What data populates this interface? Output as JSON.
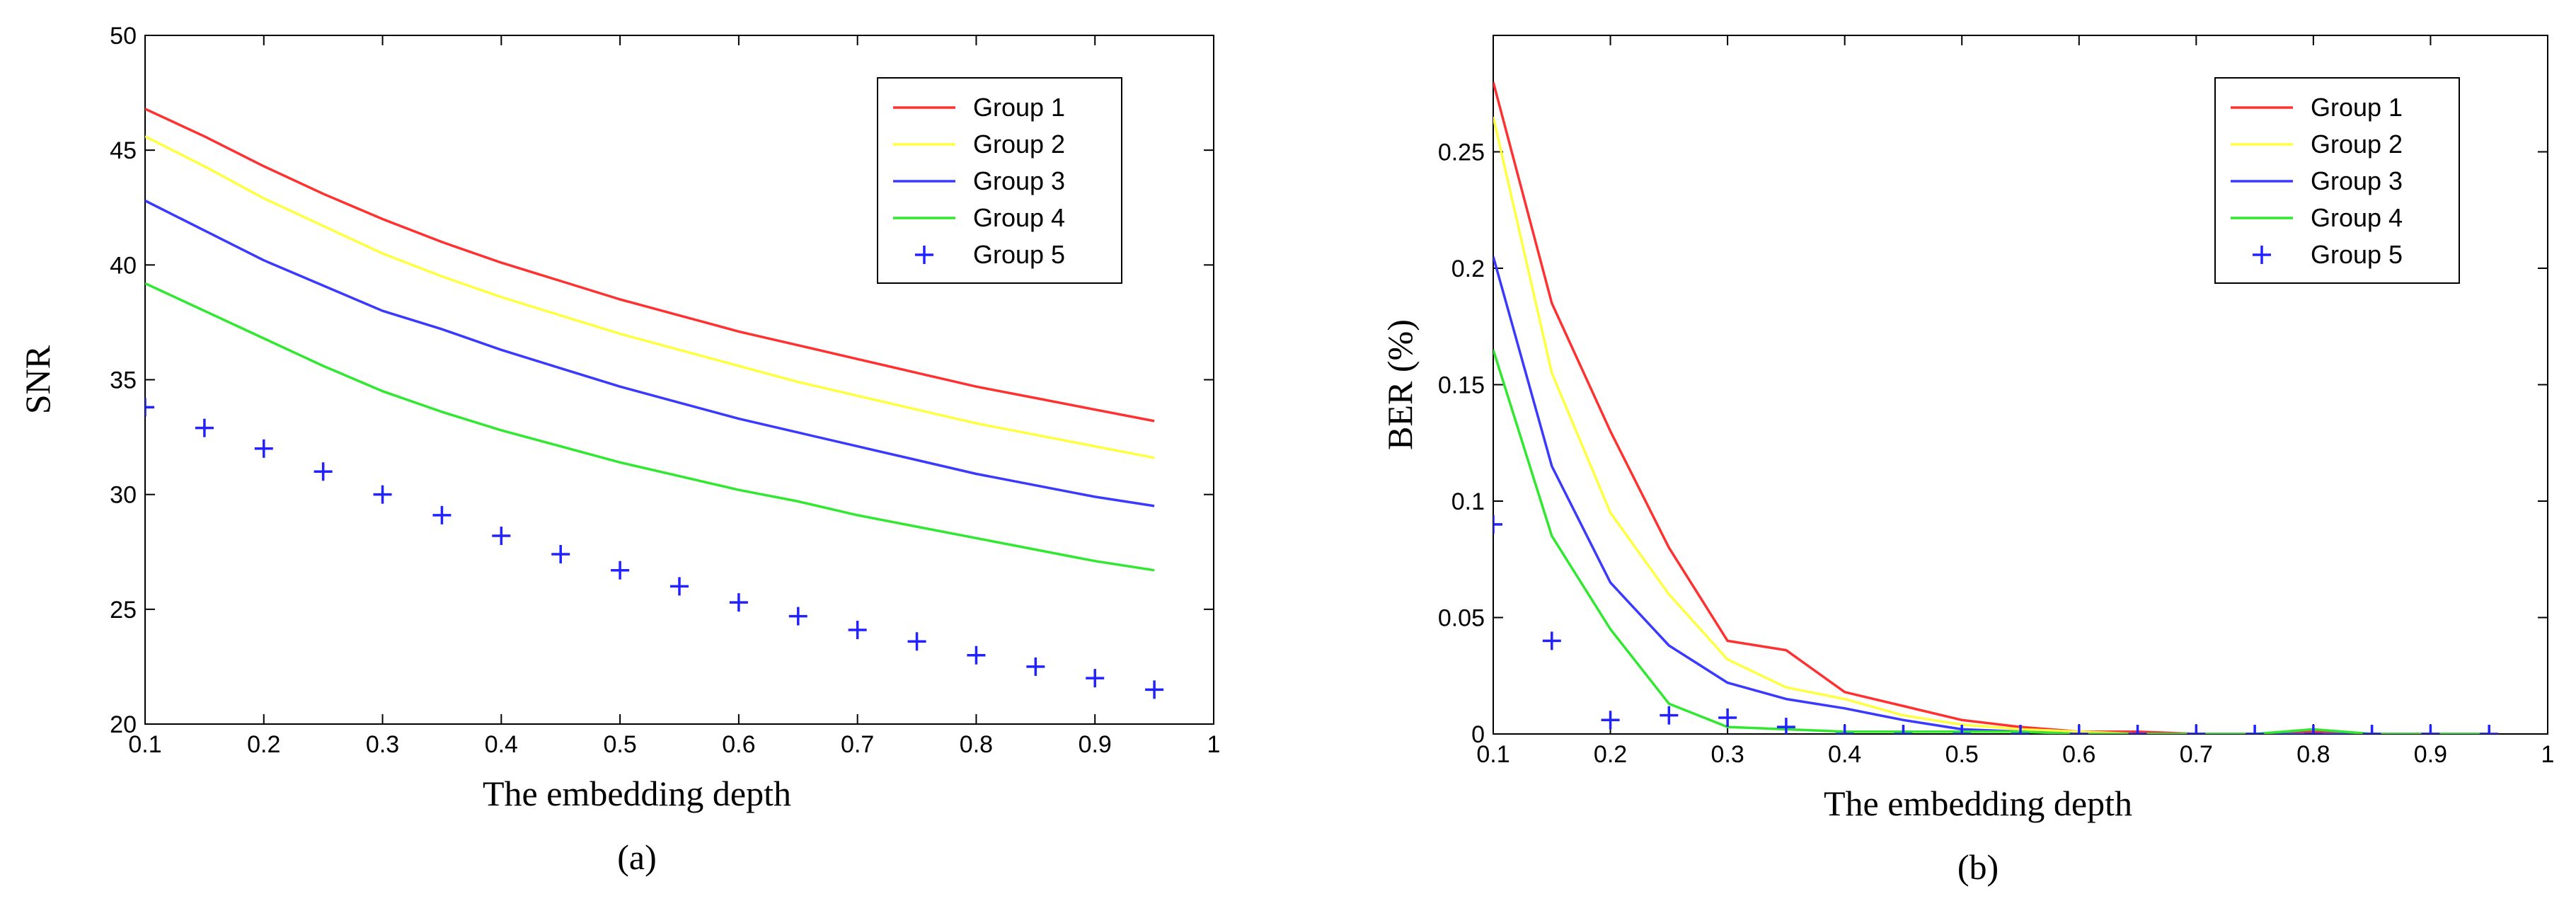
{
  "chart_data": [
    {
      "type": "line",
      "caption": "(a)",
      "xlabel": "The embedding depth",
      "ylabel": "SNR",
      "xlim": [
        0.1,
        1
      ],
      "ylim": [
        20,
        50
      ],
      "xticks": [
        "0.1",
        "0.2",
        "0.3",
        "0.4",
        "0.5",
        "0.6",
        "0.7",
        "0.8",
        "0.9",
        "1"
      ],
      "yticks": [
        "20",
        "25",
        "30",
        "35",
        "40",
        "45",
        "50"
      ],
      "grid": false,
      "legend_position": "top-right",
      "x": [
        0.1,
        0.15,
        0.2,
        0.25,
        0.3,
        0.35,
        0.4,
        0.45,
        0.5,
        0.55,
        0.6,
        0.65,
        0.7,
        0.75,
        0.8,
        0.85,
        0.9,
        0.95
      ],
      "series": [
        {
          "name": "Group 1",
          "color": "#ff3030",
          "marker": "line",
          "values": [
            46.8,
            45.6,
            44.3,
            43.1,
            42.0,
            41.0,
            40.1,
            39.3,
            38.5,
            37.8,
            37.1,
            36.5,
            35.9,
            35.3,
            34.7,
            34.2,
            33.7,
            33.2
          ]
        },
        {
          "name": "Group 2",
          "color": "#ffff40",
          "marker": "line",
          "values": [
            45.6,
            44.3,
            42.9,
            41.7,
            40.5,
            39.5,
            38.6,
            37.8,
            37.0,
            36.3,
            35.6,
            34.9,
            34.3,
            33.7,
            33.1,
            32.6,
            32.1,
            31.6
          ]
        },
        {
          "name": "Group 3",
          "color": "#3a3aff",
          "marker": "line",
          "values": [
            42.8,
            41.5,
            40.2,
            39.1,
            38.0,
            37.2,
            36.3,
            35.5,
            34.7,
            34.0,
            33.3,
            32.7,
            32.1,
            31.5,
            30.9,
            30.4,
            29.9,
            29.5
          ]
        },
        {
          "name": "Group 4",
          "color": "#30e830",
          "marker": "line",
          "values": [
            39.2,
            38.0,
            36.8,
            35.6,
            34.5,
            33.6,
            32.8,
            32.1,
            31.4,
            30.8,
            30.2,
            29.7,
            29.1,
            28.6,
            28.1,
            27.6,
            27.1,
            26.7
          ]
        },
        {
          "name": "Group 5",
          "color": "#2222ff",
          "marker": "plus",
          "values": [
            33.8,
            32.9,
            32.0,
            31.0,
            30.0,
            29.1,
            28.2,
            27.4,
            26.7,
            26.0,
            25.3,
            24.7,
            24.1,
            23.6,
            23.0,
            22.5,
            22.0,
            21.5
          ]
        }
      ]
    },
    {
      "type": "line",
      "caption": "(b)",
      "xlabel": "The embedding depth",
      "ylabel": "BER (%)",
      "xlim": [
        0.1,
        1
      ],
      "ylim": [
        0,
        0.3
      ],
      "xticks": [
        "0.1",
        "0.2",
        "0.3",
        "0.4",
        "0.5",
        "0.6",
        "0.7",
        "0.8",
        "0.9",
        "1"
      ],
      "yticks": [
        "0",
        "0.05",
        "0.1",
        "0.15",
        "0.2",
        "0.25"
      ],
      "grid": false,
      "legend_position": "top-right",
      "x": [
        0.1,
        0.15,
        0.2,
        0.25,
        0.3,
        0.35,
        0.4,
        0.45,
        0.5,
        0.55,
        0.6,
        0.65,
        0.7,
        0.75,
        0.8,
        0.85,
        0.9,
        0.95
      ],
      "series": [
        {
          "name": "Group 1",
          "color": "#ff3030",
          "marker": "line",
          "values": [
            0.28,
            0.185,
            0.13,
            0.08,
            0.04,
            0.036,
            0.018,
            0.012,
            0.006,
            0.003,
            0.001,
            0.001,
            0.0,
            0.0,
            0.001,
            0.0,
            0.0,
            0.0
          ]
        },
        {
          "name": "Group 2",
          "color": "#ffff40",
          "marker": "line",
          "values": [
            0.265,
            0.155,
            0.095,
            0.06,
            0.032,
            0.02,
            0.015,
            0.008,
            0.004,
            0.002,
            0.001,
            0.0,
            0.0,
            0.0,
            0.0,
            0.0,
            0.0,
            0.0
          ]
        },
        {
          "name": "Group 3",
          "color": "#3a3aff",
          "marker": "line",
          "values": [
            0.205,
            0.115,
            0.065,
            0.038,
            0.022,
            0.015,
            0.011,
            0.006,
            0.002,
            0.001,
            0.0,
            0.0,
            0.0,
            0.0,
            0.0,
            0.0,
            0.0,
            0.0
          ]
        },
        {
          "name": "Group 4",
          "color": "#30e830",
          "marker": "line",
          "values": [
            0.165,
            0.085,
            0.045,
            0.013,
            0.003,
            0.002,
            0.001,
            0.001,
            0.001,
            0.001,
            0.0,
            0.0,
            0.0,
            0.0,
            0.002,
            0.0,
            0.0,
            0.0
          ]
        },
        {
          "name": "Group 5",
          "color": "#2222ff",
          "marker": "plus",
          "values": [
            0.09,
            0.04,
            0.006,
            0.008,
            0.007,
            0.003,
            0.0,
            0.0,
            0.0,
            0.0,
            0.0,
            0.0,
            0.0,
            0.0,
            0.0,
            0.0,
            0.0,
            0.0
          ]
        }
      ]
    }
  ]
}
